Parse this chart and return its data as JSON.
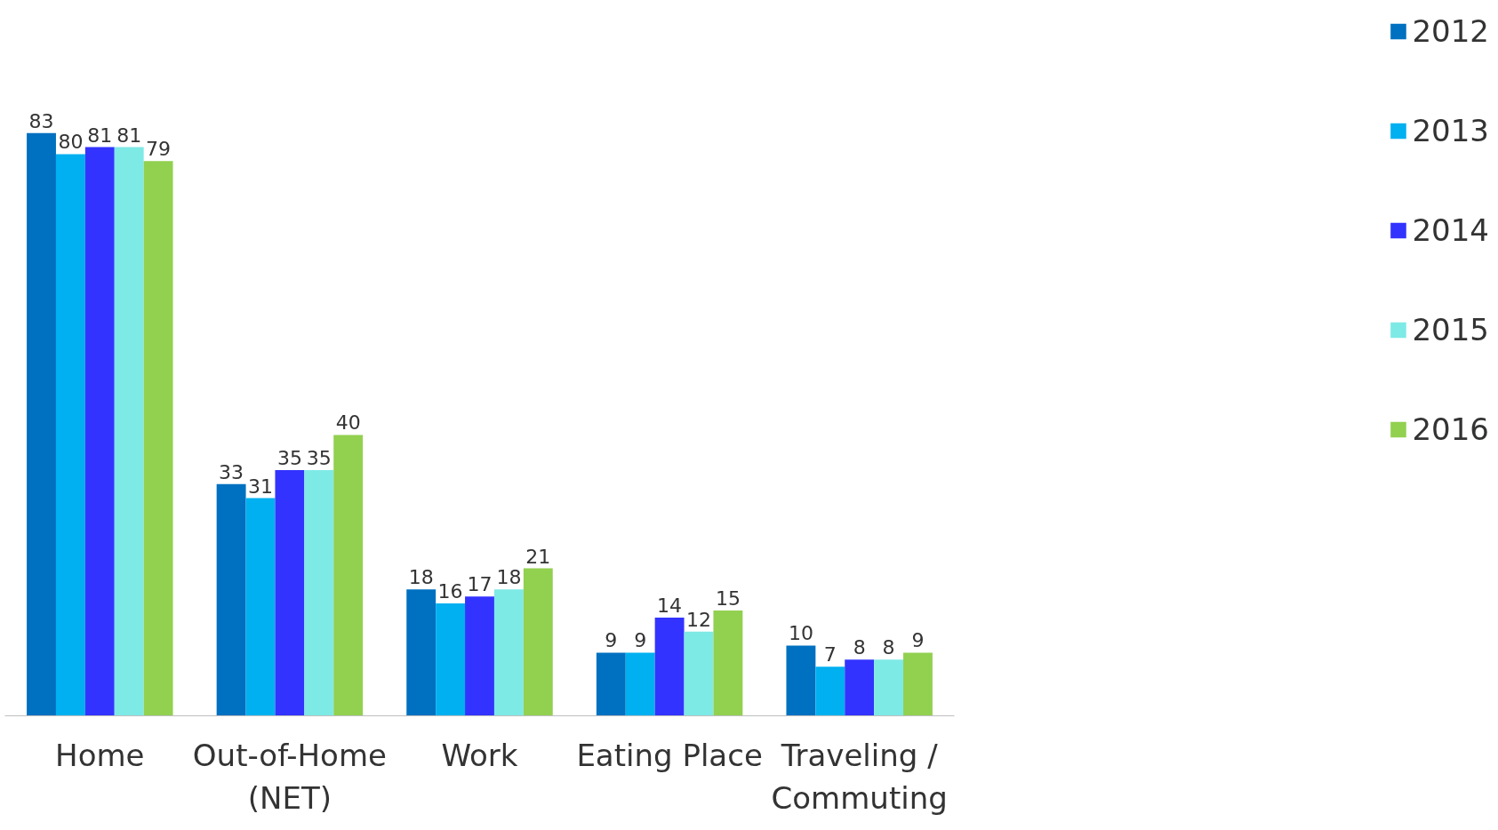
{
  "chart_data": {
    "type": "bar",
    "categories": [
      "Home",
      "Out-of-Home (NET)",
      "Work",
      "Eating Place",
      "Traveling / Commuting"
    ],
    "series": [
      {
        "name": "2012",
        "color": "#0070c0",
        "values": [
          83,
          33,
          18,
          9,
          10
        ]
      },
      {
        "name": "2013",
        "color": "#00b0f0",
        "values": [
          80,
          31,
          16,
          9,
          7
        ]
      },
      {
        "name": "2014",
        "color": "#3333ff",
        "values": [
          81,
          35,
          17,
          14,
          8
        ]
      },
      {
        "name": "2015",
        "color": "#7eeae6",
        "values": [
          81,
          35,
          18,
          12,
          8
        ]
      },
      {
        "name": "2016",
        "color": "#92d050",
        "values": [
          79,
          40,
          21,
          15,
          9
        ]
      }
    ],
    "data_labels": true,
    "legend": "top right",
    "grid": false
  }
}
